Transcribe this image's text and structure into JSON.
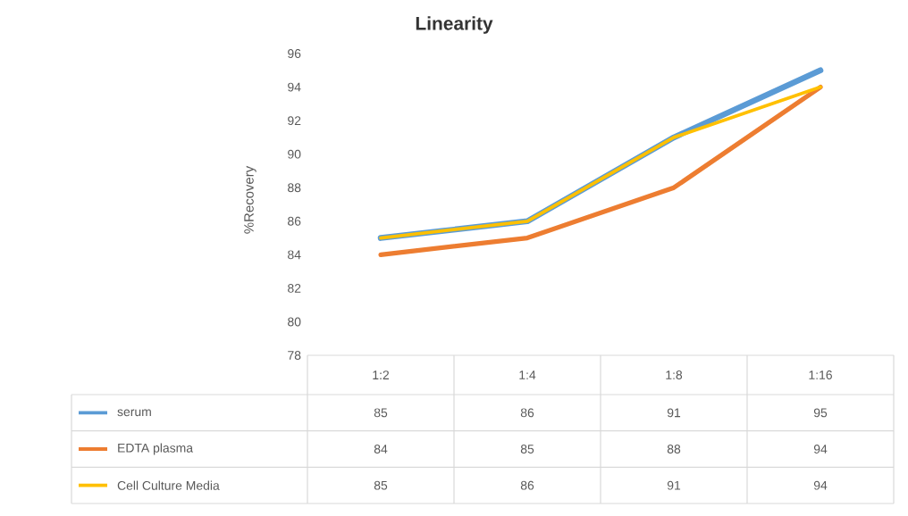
{
  "chart_data": {
    "type": "line",
    "title": "Linearity",
    "ylabel": "%Recovery",
    "categories": [
      "1:2",
      "1:4",
      "1:8",
      "1:16"
    ],
    "series": [
      {
        "name": "serum",
        "color": "#5b9bd5",
        "values": [
          85,
          86,
          91,
          95
        ]
      },
      {
        "name": "EDTA plasma",
        "color": "#ed7d31",
        "values": [
          84,
          85,
          88,
          94
        ]
      },
      {
        "name": "Cell Culture Media",
        "color": "#ffc000",
        "values": [
          85,
          86,
          91,
          94
        ]
      }
    ],
    "ylim": [
      78,
      96
    ],
    "yticks": [
      78,
      80,
      82,
      84,
      86,
      88,
      90,
      92,
      94,
      96
    ],
    "data_labels": true,
    "legend": "bottom"
  }
}
